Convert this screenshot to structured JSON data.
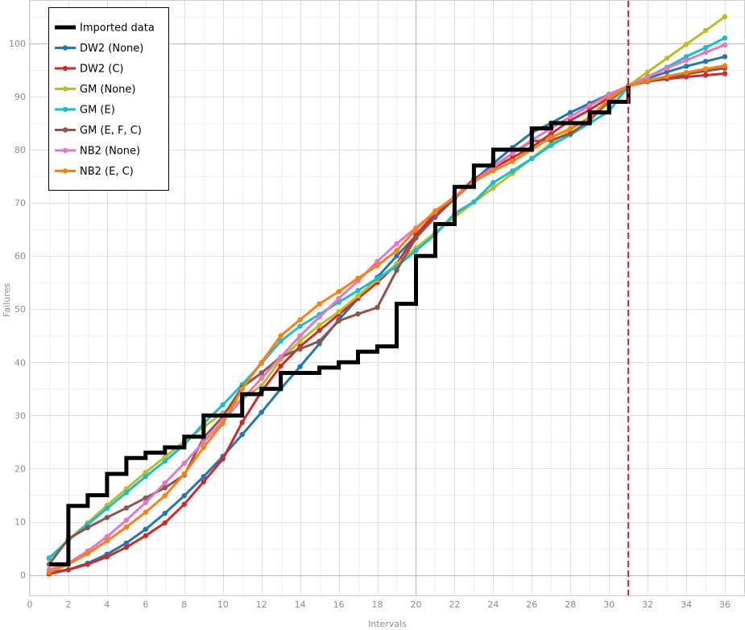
{
  "chart_data": {
    "type": "line",
    "xlabel": "Intervals",
    "ylabel": "Failures",
    "xlim": [
      0,
      37
    ],
    "ylim": [
      -4,
      108
    ],
    "x_major_ticks": [
      0,
      2,
      4,
      6,
      8,
      10,
      12,
      14,
      16,
      18,
      20,
      22,
      24,
      26,
      28,
      30,
      32,
      34,
      36
    ],
    "y_major_ticks": [
      0,
      10,
      20,
      30,
      40,
      50,
      60,
      70,
      80,
      90,
      100
    ],
    "grid": true,
    "legend_position": "top-left",
    "vertical_marker": {
      "x": 31,
      "color": "#e41a1c",
      "style": "dashed"
    },
    "imported_data": {
      "name": "Imported data",
      "color": "#000000",
      "x": [
        1,
        2,
        3,
        4,
        5,
        6,
        7,
        8,
        9,
        10,
        11,
        12,
        13,
        14,
        15,
        16,
        17,
        18,
        19,
        20,
        21,
        22,
        23,
        24,
        25,
        26,
        27,
        28,
        29,
        30,
        31
      ],
      "y": [
        2,
        13,
        15,
        19,
        22,
        23,
        24,
        26,
        30,
        30,
        34,
        35,
        38,
        38,
        39,
        40,
        42,
        43,
        51,
        60,
        66,
        73,
        77,
        80,
        80,
        84,
        85,
        85,
        87,
        89,
        92
      ]
    },
    "x": [
      1,
      2,
      3,
      4,
      5,
      6,
      7,
      8,
      9,
      10,
      11,
      12,
      13,
      14,
      15,
      16,
      17,
      18,
      19,
      20,
      21,
      22,
      23,
      24,
      25,
      26,
      27,
      28,
      29,
      30,
      31,
      32,
      33,
      34,
      35,
      36
    ],
    "series": [
      {
        "name": "DW2 (None)",
        "color": "#1f77b4",
        "values": [
          0.5,
          1.0,
          2.2,
          3.9,
          6.0,
          8.6,
          11.6,
          14.9,
          18.5,
          22.3,
          26.4,
          30.6,
          35.0,
          39.2,
          43.5,
          48.0,
          52.0,
          56.0,
          60.0,
          63.8,
          67.4,
          70.9,
          74.2,
          77.4,
          80.4,
          83.2,
          85.0,
          87.0,
          88.7,
          90.4,
          92.0,
          93.4,
          94.6,
          95.7,
          96.6,
          97.5
        ]
      },
      {
        "name": "DW2 (C)",
        "color": "#d62728",
        "values": [
          0.2,
          1.0,
          2.0,
          3.4,
          5.2,
          7.4,
          9.8,
          13.3,
          17.5,
          21.8,
          28.7,
          34.5,
          39.3,
          43.0,
          46.0,
          49.0,
          52.0,
          55.0,
          58.5,
          64.0,
          68.0,
          71.0,
          74.5,
          76.5,
          78.5,
          80.5,
          83.0,
          85.5,
          87.5,
          89.8,
          92.0,
          92.8,
          93.3,
          93.7,
          94.0,
          94.3
        ]
      },
      {
        "name": "GM (None)",
        "color": "#bcbd22",
        "values": [
          3.0,
          6.6,
          9.8,
          13.1,
          16.2,
          19.3,
          22.2,
          25.1,
          27.8,
          30.5,
          33.1,
          35.6,
          40.5,
          44.0,
          47.0,
          49.5,
          52.5,
          55.5,
          58.5,
          61.5,
          64.4,
          67.3,
          70.1,
          72.8,
          75.5,
          78.4,
          81.2,
          83.7,
          86.2,
          88.6,
          92.0,
          94.6,
          97.2,
          99.8,
          102.4,
          105.0
        ]
      },
      {
        "name": "GM (E)",
        "color": "#17becf",
        "values": [
          3.2,
          6.5,
          9.5,
          12.5,
          15.5,
          18.5,
          21.4,
          24.5,
          28.5,
          32.0,
          35.8,
          39.8,
          44.0,
          46.8,
          49.0,
          51.3,
          53.5,
          55.8,
          58.0,
          61.0,
          64.0,
          68.0,
          70.2,
          73.8,
          76.0,
          78.3,
          80.8,
          82.8,
          85.0,
          87.2,
          92.0,
          93.7,
          95.5,
          97.5,
          99.2,
          101.0
        ]
      },
      {
        "name": "GM (E, F, C)",
        "color": "#8c564b",
        "values": [
          2.0,
          6.8,
          8.9,
          10.8,
          12.6,
          14.5,
          16.4,
          18.8,
          25.8,
          29.8,
          35.3,
          38.0,
          41.0,
          42.5,
          44.0,
          47.8,
          49.1,
          50.3,
          57.3,
          63.4,
          67.3,
          70.8,
          74.0,
          76.8,
          79.3,
          81.6,
          81.8,
          83.0,
          85.5,
          89.3,
          92.0,
          92.8,
          93.5,
          94.2,
          94.8,
          95.3
        ]
      },
      {
        "name": "NB2 (None)",
        "color": "#e377c2",
        "values": [
          1.0,
          2.2,
          4.5,
          7.2,
          10.3,
          13.6,
          17.3,
          21.0,
          25.0,
          29.0,
          33.0,
          37.0,
          41.0,
          45.0,
          48.5,
          52.0,
          55.3,
          59.0,
          62.3,
          65.3,
          68.3,
          71.2,
          74.0,
          76.7,
          79.3,
          81.8,
          84.0,
          86.2,
          88.3,
          90.3,
          92.0,
          93.7,
          95.3,
          96.8,
          98.3,
          99.7
        ]
      },
      {
        "name": "NB2 (E, C)",
        "color": "#ff7f0e",
        "values": [
          0.5,
          2.0,
          4.0,
          6.4,
          9.0,
          11.8,
          14.9,
          19.0,
          24.0,
          28.5,
          35.0,
          40.0,
          45.0,
          48.0,
          51.0,
          53.3,
          55.8,
          58.2,
          61.0,
          65.0,
          68.5,
          71.0,
          74.0,
          76.0,
          77.8,
          80.0,
          82.3,
          84.0,
          86.0,
          89.6,
          92.0,
          93.0,
          93.8,
          94.5,
          95.2,
          95.8
        ]
      }
    ]
  }
}
